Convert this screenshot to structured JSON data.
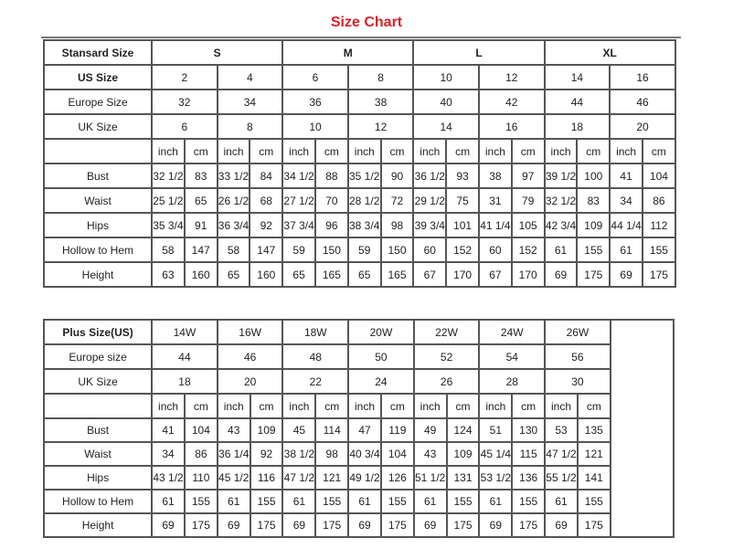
{
  "title": "Size Chart",
  "standard": {
    "header_label": "Stansard Size",
    "groups": [
      "S",
      "M",
      "L",
      "XL"
    ],
    "size_rows": [
      {
        "label": "US Size",
        "bold": true,
        "values": [
          "2",
          "4",
          "6",
          "8",
          "10",
          "12",
          "14",
          "16"
        ]
      },
      {
        "label": "Europe Size",
        "values": [
          "32",
          "34",
          "36",
          "38",
          "40",
          "42",
          "44",
          "46"
        ]
      },
      {
        "label": "UK Size",
        "values": [
          "6",
          "8",
          "10",
          "12",
          "14",
          "16",
          "18",
          "20"
        ]
      }
    ],
    "unit_labels": [
      "inch",
      "cm"
    ],
    "measure_rows": [
      {
        "label": "Bust",
        "values": [
          "32 1/2",
          "83",
          "33 1/2",
          "84",
          "34 1/2",
          "88",
          "35 1/2",
          "90",
          "36 1/2",
          "93",
          "38",
          "97",
          "39 1/2",
          "100",
          "41",
          "104"
        ]
      },
      {
        "label": "Waist",
        "values": [
          "25 1/2",
          "65",
          "26 1/2",
          "68",
          "27 1/2",
          "70",
          "28 1/2",
          "72",
          "29 1/2",
          "75",
          "31",
          "79",
          "32 1/2",
          "83",
          "34",
          "86"
        ]
      },
      {
        "label": "Hips",
        "values": [
          "35 3/4",
          "91",
          "36 3/4",
          "92",
          "37 3/4",
          "96",
          "38 3/4",
          "98",
          "39 3/4",
          "101",
          "41 1/4",
          "105",
          "42 3/4",
          "109",
          "44 1/4",
          "112"
        ]
      },
      {
        "label": "Hollow to Hem",
        "values": [
          "58",
          "147",
          "58",
          "147",
          "59",
          "150",
          "59",
          "150",
          "60",
          "152",
          "60",
          "152",
          "61",
          "155",
          "61",
          "155"
        ]
      },
      {
        "label": "Height",
        "values": [
          "63",
          "160",
          "65",
          "160",
          "65",
          "165",
          "65",
          "165",
          "67",
          "170",
          "67",
          "170",
          "69",
          "175",
          "69",
          "175"
        ]
      }
    ]
  },
  "plus": {
    "header_label": "Plus Size(US)",
    "sizes": [
      "14W",
      "16W",
      "18W",
      "20W",
      "22W",
      "24W",
      "26W"
    ],
    "size_rows": [
      {
        "label": "Europe size",
        "values": [
          "44",
          "46",
          "48",
          "50",
          "52",
          "54",
          "56"
        ]
      },
      {
        "label": "UK Size",
        "values": [
          "18",
          "20",
          "22",
          "24",
          "26",
          "28",
          "30"
        ]
      }
    ],
    "unit_labels": [
      "inch",
      "cm"
    ],
    "measure_rows": [
      {
        "label": "Bust",
        "values": [
          "41",
          "104",
          "43",
          "109",
          "45",
          "114",
          "47",
          "119",
          "49",
          "124",
          "51",
          "130",
          "53",
          "135"
        ]
      },
      {
        "label": "Waist",
        "values": [
          "34",
          "86",
          "36 1/4",
          "92",
          "38 1/2",
          "98",
          "40 3/4",
          "104",
          "43",
          "109",
          "45 1/4",
          "115",
          "47 1/2",
          "121"
        ]
      },
      {
        "label": "Hips",
        "values": [
          "43 1/2",
          "110",
          "45 1/2",
          "116",
          "47 1/2",
          "121",
          "49 1/2",
          "126",
          "51 1/2",
          "131",
          "53 1/2",
          "136",
          "55 1/2",
          "141"
        ]
      },
      {
        "label": "Hollow to Hem",
        "values": [
          "61",
          "155",
          "61",
          "155",
          "61",
          "155",
          "61",
          "155",
          "61",
          "155",
          "61",
          "155",
          "61",
          "155"
        ]
      },
      {
        "label": "Height",
        "values": [
          "69",
          "175",
          "69",
          "175",
          "69",
          "175",
          "69",
          "175",
          "69",
          "175",
          "69",
          "175",
          "69",
          "175"
        ]
      }
    ]
  }
}
